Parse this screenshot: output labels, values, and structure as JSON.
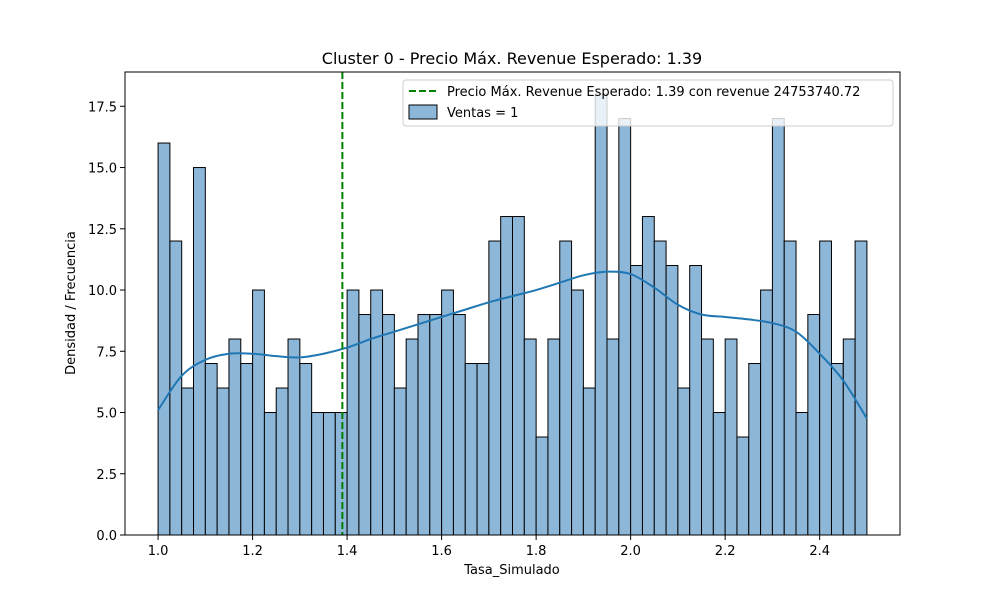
{
  "chart_data": {
    "type": "bar",
    "title": "Cluster 0 - Precio Máx. Revenue Esperado: 1.39",
    "xlabel": "Tasa_Simulado",
    "ylabel": "Densidad / Frecuencia",
    "xlim": [
      0.93,
      2.57
    ],
    "ylim": [
      0,
      18.9
    ],
    "xticks": [
      1.0,
      1.2,
      1.4,
      1.6,
      1.8,
      2.0,
      2.2,
      2.4
    ],
    "xtick_labels": [
      "1.0",
      "1.2",
      "1.4",
      "1.6",
      "1.8",
      "2.0",
      "2.2",
      "2.4"
    ],
    "yticks": [
      0,
      2.5,
      5,
      7.5,
      10,
      12.5,
      15,
      17.5
    ],
    "ytick_labels": [
      "0.0",
      "2.5",
      "5.0",
      "7.5",
      "10.0",
      "12.5",
      "15.0",
      "17.5"
    ],
    "bin_range": [
      1.0,
      2.5
    ],
    "counts": [
      16,
      12,
      6,
      15,
      7,
      6,
      8,
      7,
      10,
      5,
      6,
      8,
      7,
      5,
      5,
      5,
      10,
      9,
      10,
      9,
      6,
      8,
      9,
      9,
      10,
      9,
      7,
      7,
      12,
      13,
      13,
      8,
      4,
      8,
      12,
      10,
      6,
      18,
      8,
      17,
      11,
      13,
      12,
      11,
      6,
      11,
      8,
      5,
      8,
      4,
      7,
      10,
      17,
      12,
      5,
      9,
      12,
      7,
      8,
      12
    ],
    "bar_color": "#8db7d9",
    "bar_edge_color": "#000000",
    "kde": {
      "color": "#1f77b4",
      "x": [
        1.0,
        1.05,
        1.1,
        1.15,
        1.2,
        1.25,
        1.3,
        1.35,
        1.4,
        1.45,
        1.5,
        1.55,
        1.6,
        1.65,
        1.7,
        1.75,
        1.8,
        1.85,
        1.9,
        1.95,
        2.0,
        2.05,
        2.1,
        2.15,
        2.2,
        2.25,
        2.3,
        2.35,
        2.4,
        2.45,
        2.5
      ],
      "y": [
        5.1,
        6.5,
        7.15,
        7.4,
        7.4,
        7.3,
        7.25,
        7.4,
        7.65,
        8.0,
        8.3,
        8.6,
        8.9,
        9.2,
        9.5,
        9.75,
        10.0,
        10.3,
        10.6,
        10.75,
        10.65,
        10.1,
        9.4,
        9.0,
        8.9,
        8.8,
        8.65,
        8.3,
        7.4,
        6.3,
        4.75
      ]
    },
    "vline": {
      "x": 1.39,
      "color": "#008000",
      "label": "Precio Máx. Revenue Esperado: 1.39 con revenue 24753740.72"
    },
    "legend": {
      "placement": "top-right",
      "entries": [
        "Precio Máx. Revenue Esperado: 1.39 con revenue 24753740.72",
        "Ventas = 1"
      ]
    },
    "grid": false
  }
}
